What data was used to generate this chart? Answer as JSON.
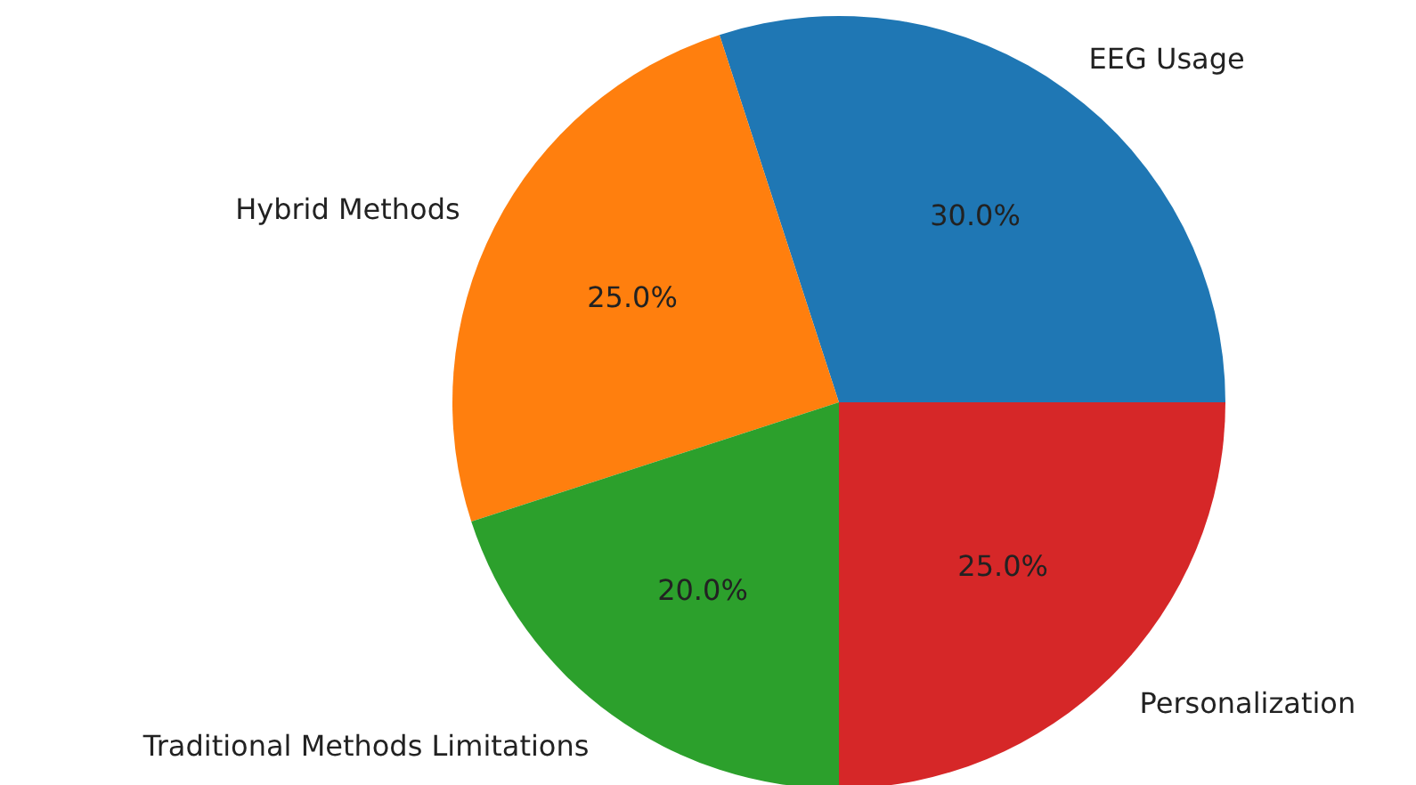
{
  "chart_data": {
    "type": "pie",
    "categories": [
      "EEG Usage",
      "Hybrid Methods",
      "Traditional Methods Limitations",
      "Personalization"
    ],
    "values": [
      30,
      25,
      20,
      25
    ],
    "colors": [
      "#1f77b4",
      "#ff7f0e",
      "#2ca02c",
      "#d62728"
    ],
    "value_labels": [
      "30.0%",
      "25.0%",
      "20.0%",
      "25.0%"
    ]
  }
}
